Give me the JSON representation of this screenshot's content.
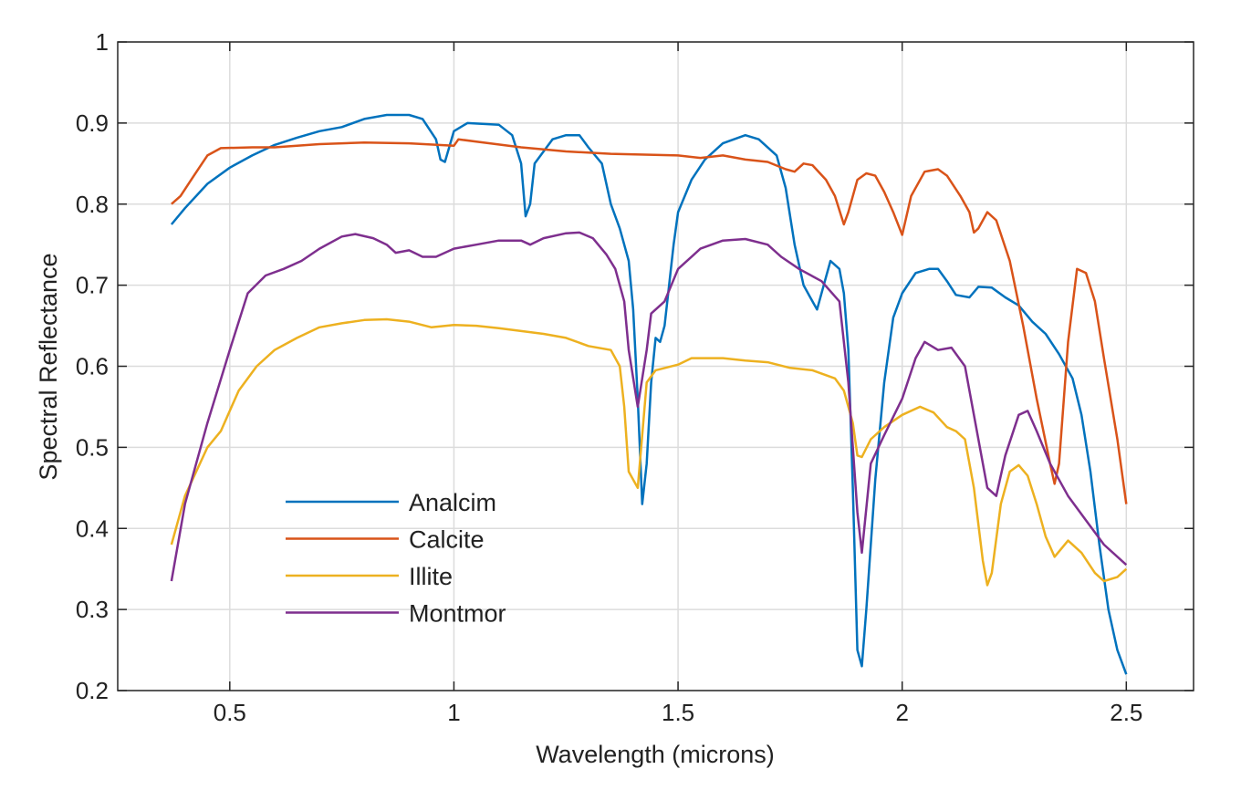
{
  "chart_data": {
    "type": "line",
    "title": "",
    "xlabel": "Wavelength (microns)",
    "ylabel": "Spectral Reflectance",
    "xlim": [
      0.25,
      2.65
    ],
    "ylim": [
      0.2,
      1.0
    ],
    "xticks": [
      0.5,
      1,
      1.5,
      2,
      2.5
    ],
    "xtick_labels": [
      "0.5",
      "1",
      "1.5",
      "2",
      "2.5"
    ],
    "yticks": [
      0.2,
      0.3,
      0.4,
      0.5,
      0.6,
      0.7,
      0.8,
      0.9,
      1.0
    ],
    "ytick_labels": [
      "0.2",
      "0.3",
      "0.4",
      "0.5",
      "0.6",
      "0.7",
      "0.8",
      "0.9",
      "1"
    ],
    "grid": true,
    "legend_position": "lower-left",
    "series": [
      {
        "name": "Analcim",
        "color": "#0072BD",
        "x": [
          0.37,
          0.4,
          0.45,
          0.5,
          0.55,
          0.6,
          0.65,
          0.7,
          0.75,
          0.8,
          0.85,
          0.9,
          0.93,
          0.96,
          0.97,
          0.98,
          1.0,
          1.03,
          1.1,
          1.13,
          1.15,
          1.16,
          1.17,
          1.18,
          1.2,
          1.22,
          1.25,
          1.28,
          1.3,
          1.33,
          1.35,
          1.37,
          1.39,
          1.4,
          1.41,
          1.42,
          1.43,
          1.44,
          1.45,
          1.46,
          1.47,
          1.49,
          1.5,
          1.53,
          1.56,
          1.6,
          1.65,
          1.68,
          1.72,
          1.74,
          1.76,
          1.78,
          1.8,
          1.81,
          1.83,
          1.84,
          1.86,
          1.87,
          1.88,
          1.89,
          1.9,
          1.91,
          1.92,
          1.94,
          1.96,
          1.98,
          2.0,
          2.03,
          2.06,
          2.08,
          2.1,
          2.12,
          2.15,
          2.17,
          2.2,
          2.23,
          2.26,
          2.29,
          2.32,
          2.35,
          2.38,
          2.4,
          2.42,
          2.44,
          2.46,
          2.48,
          2.5
        ],
        "y": [
          0.775,
          0.795,
          0.825,
          0.845,
          0.86,
          0.873,
          0.882,
          0.89,
          0.895,
          0.905,
          0.91,
          0.91,
          0.905,
          0.88,
          0.855,
          0.852,
          0.89,
          0.9,
          0.898,
          0.885,
          0.85,
          0.785,
          0.8,
          0.85,
          0.865,
          0.88,
          0.885,
          0.885,
          0.87,
          0.85,
          0.8,
          0.77,
          0.73,
          0.67,
          0.56,
          0.43,
          0.48,
          0.58,
          0.635,
          0.63,
          0.65,
          0.75,
          0.79,
          0.83,
          0.855,
          0.875,
          0.885,
          0.88,
          0.86,
          0.82,
          0.75,
          0.7,
          0.68,
          0.67,
          0.71,
          0.73,
          0.72,
          0.69,
          0.62,
          0.45,
          0.25,
          0.23,
          0.3,
          0.46,
          0.58,
          0.66,
          0.69,
          0.715,
          0.72,
          0.72,
          0.705,
          0.688,
          0.685,
          0.698,
          0.697,
          0.685,
          0.675,
          0.655,
          0.64,
          0.615,
          0.585,
          0.54,
          0.47,
          0.38,
          0.3,
          0.25,
          0.22
        ]
      },
      {
        "name": "Calcite",
        "color": "#D95319",
        "x": [
          0.37,
          0.39,
          0.42,
          0.45,
          0.48,
          0.55,
          0.6,
          0.7,
          0.8,
          0.9,
          1.0,
          1.01,
          1.05,
          1.15,
          1.25,
          1.35,
          1.5,
          1.55,
          1.6,
          1.65,
          1.7,
          1.74,
          1.76,
          1.78,
          1.8,
          1.83,
          1.85,
          1.87,
          1.88,
          1.9,
          1.92,
          1.94,
          1.96,
          1.98,
          2.0,
          2.02,
          2.05,
          2.08,
          2.1,
          2.13,
          2.15,
          2.16,
          2.17,
          2.19,
          2.21,
          2.24,
          2.27,
          2.3,
          2.33,
          2.34,
          2.35,
          2.37,
          2.39,
          2.41,
          2.43,
          2.45,
          2.48,
          2.5
        ],
        "y": [
          0.8,
          0.81,
          0.835,
          0.86,
          0.869,
          0.87,
          0.87,
          0.874,
          0.876,
          0.875,
          0.872,
          0.88,
          0.877,
          0.87,
          0.865,
          0.862,
          0.86,
          0.857,
          0.86,
          0.855,
          0.852,
          0.843,
          0.84,
          0.85,
          0.848,
          0.83,
          0.81,
          0.775,
          0.79,
          0.83,
          0.838,
          0.835,
          0.815,
          0.79,
          0.762,
          0.81,
          0.84,
          0.843,
          0.835,
          0.81,
          0.79,
          0.765,
          0.77,
          0.79,
          0.78,
          0.73,
          0.65,
          0.56,
          0.48,
          0.455,
          0.48,
          0.63,
          0.72,
          0.715,
          0.68,
          0.61,
          0.51,
          0.43
        ]
      },
      {
        "name": "Illite",
        "color": "#EDB120",
        "x": [
          0.37,
          0.4,
          0.45,
          0.48,
          0.52,
          0.56,
          0.6,
          0.65,
          0.7,
          0.75,
          0.8,
          0.85,
          0.9,
          0.95,
          1.0,
          1.05,
          1.1,
          1.2,
          1.25,
          1.3,
          1.35,
          1.37,
          1.38,
          1.39,
          1.41,
          1.43,
          1.45,
          1.5,
          1.53,
          1.6,
          1.65,
          1.7,
          1.75,
          1.8,
          1.85,
          1.87,
          1.89,
          1.9,
          1.91,
          1.93,
          1.96,
          2.0,
          2.04,
          2.07,
          2.1,
          2.12,
          2.14,
          2.16,
          2.18,
          2.19,
          2.2,
          2.22,
          2.24,
          2.26,
          2.28,
          2.3,
          2.32,
          2.34,
          2.37,
          2.4,
          2.43,
          2.45,
          2.48,
          2.5
        ],
        "y": [
          0.38,
          0.44,
          0.5,
          0.52,
          0.57,
          0.6,
          0.62,
          0.635,
          0.648,
          0.653,
          0.657,
          0.658,
          0.655,
          0.648,
          0.651,
          0.65,
          0.647,
          0.64,
          0.635,
          0.625,
          0.62,
          0.6,
          0.55,
          0.47,
          0.45,
          0.58,
          0.595,
          0.602,
          0.61,
          0.61,
          0.607,
          0.605,
          0.598,
          0.595,
          0.585,
          0.57,
          0.53,
          0.49,
          0.488,
          0.51,
          0.525,
          0.54,
          0.55,
          0.543,
          0.525,
          0.52,
          0.51,
          0.45,
          0.36,
          0.33,
          0.345,
          0.43,
          0.47,
          0.478,
          0.465,
          0.43,
          0.39,
          0.365,
          0.385,
          0.37,
          0.345,
          0.335,
          0.34,
          0.35
        ]
      },
      {
        "name": "Montmor",
        "color": "#7E2F8E",
        "x": [
          0.37,
          0.4,
          0.45,
          0.5,
          0.54,
          0.58,
          0.62,
          0.66,
          0.7,
          0.75,
          0.78,
          0.82,
          0.85,
          0.87,
          0.9,
          0.93,
          0.96,
          1.0,
          1.05,
          1.1,
          1.15,
          1.17,
          1.2,
          1.25,
          1.28,
          1.31,
          1.34,
          1.36,
          1.38,
          1.39,
          1.41,
          1.43,
          1.44,
          1.47,
          1.5,
          1.55,
          1.6,
          1.65,
          1.7,
          1.73,
          1.77,
          1.82,
          1.86,
          1.88,
          1.9,
          1.91,
          1.93,
          1.96,
          2.0,
          2.03,
          2.05,
          2.08,
          2.11,
          2.14,
          2.17,
          2.19,
          2.21,
          2.23,
          2.26,
          2.28,
          2.3,
          2.33,
          2.37,
          2.41,
          2.45,
          2.5
        ],
        "y": [
          0.335,
          0.43,
          0.53,
          0.62,
          0.69,
          0.712,
          0.72,
          0.73,
          0.745,
          0.76,
          0.763,
          0.758,
          0.75,
          0.74,
          0.743,
          0.735,
          0.735,
          0.745,
          0.75,
          0.755,
          0.755,
          0.75,
          0.758,
          0.764,
          0.765,
          0.758,
          0.738,
          0.72,
          0.68,
          0.62,
          0.55,
          0.62,
          0.665,
          0.68,
          0.72,
          0.745,
          0.755,
          0.757,
          0.75,
          0.735,
          0.72,
          0.705,
          0.68,
          0.58,
          0.42,
          0.37,
          0.48,
          0.515,
          0.56,
          0.61,
          0.63,
          0.62,
          0.623,
          0.6,
          0.51,
          0.45,
          0.44,
          0.49,
          0.54,
          0.545,
          0.52,
          0.48,
          0.44,
          0.41,
          0.38,
          0.355
        ]
      }
    ]
  }
}
